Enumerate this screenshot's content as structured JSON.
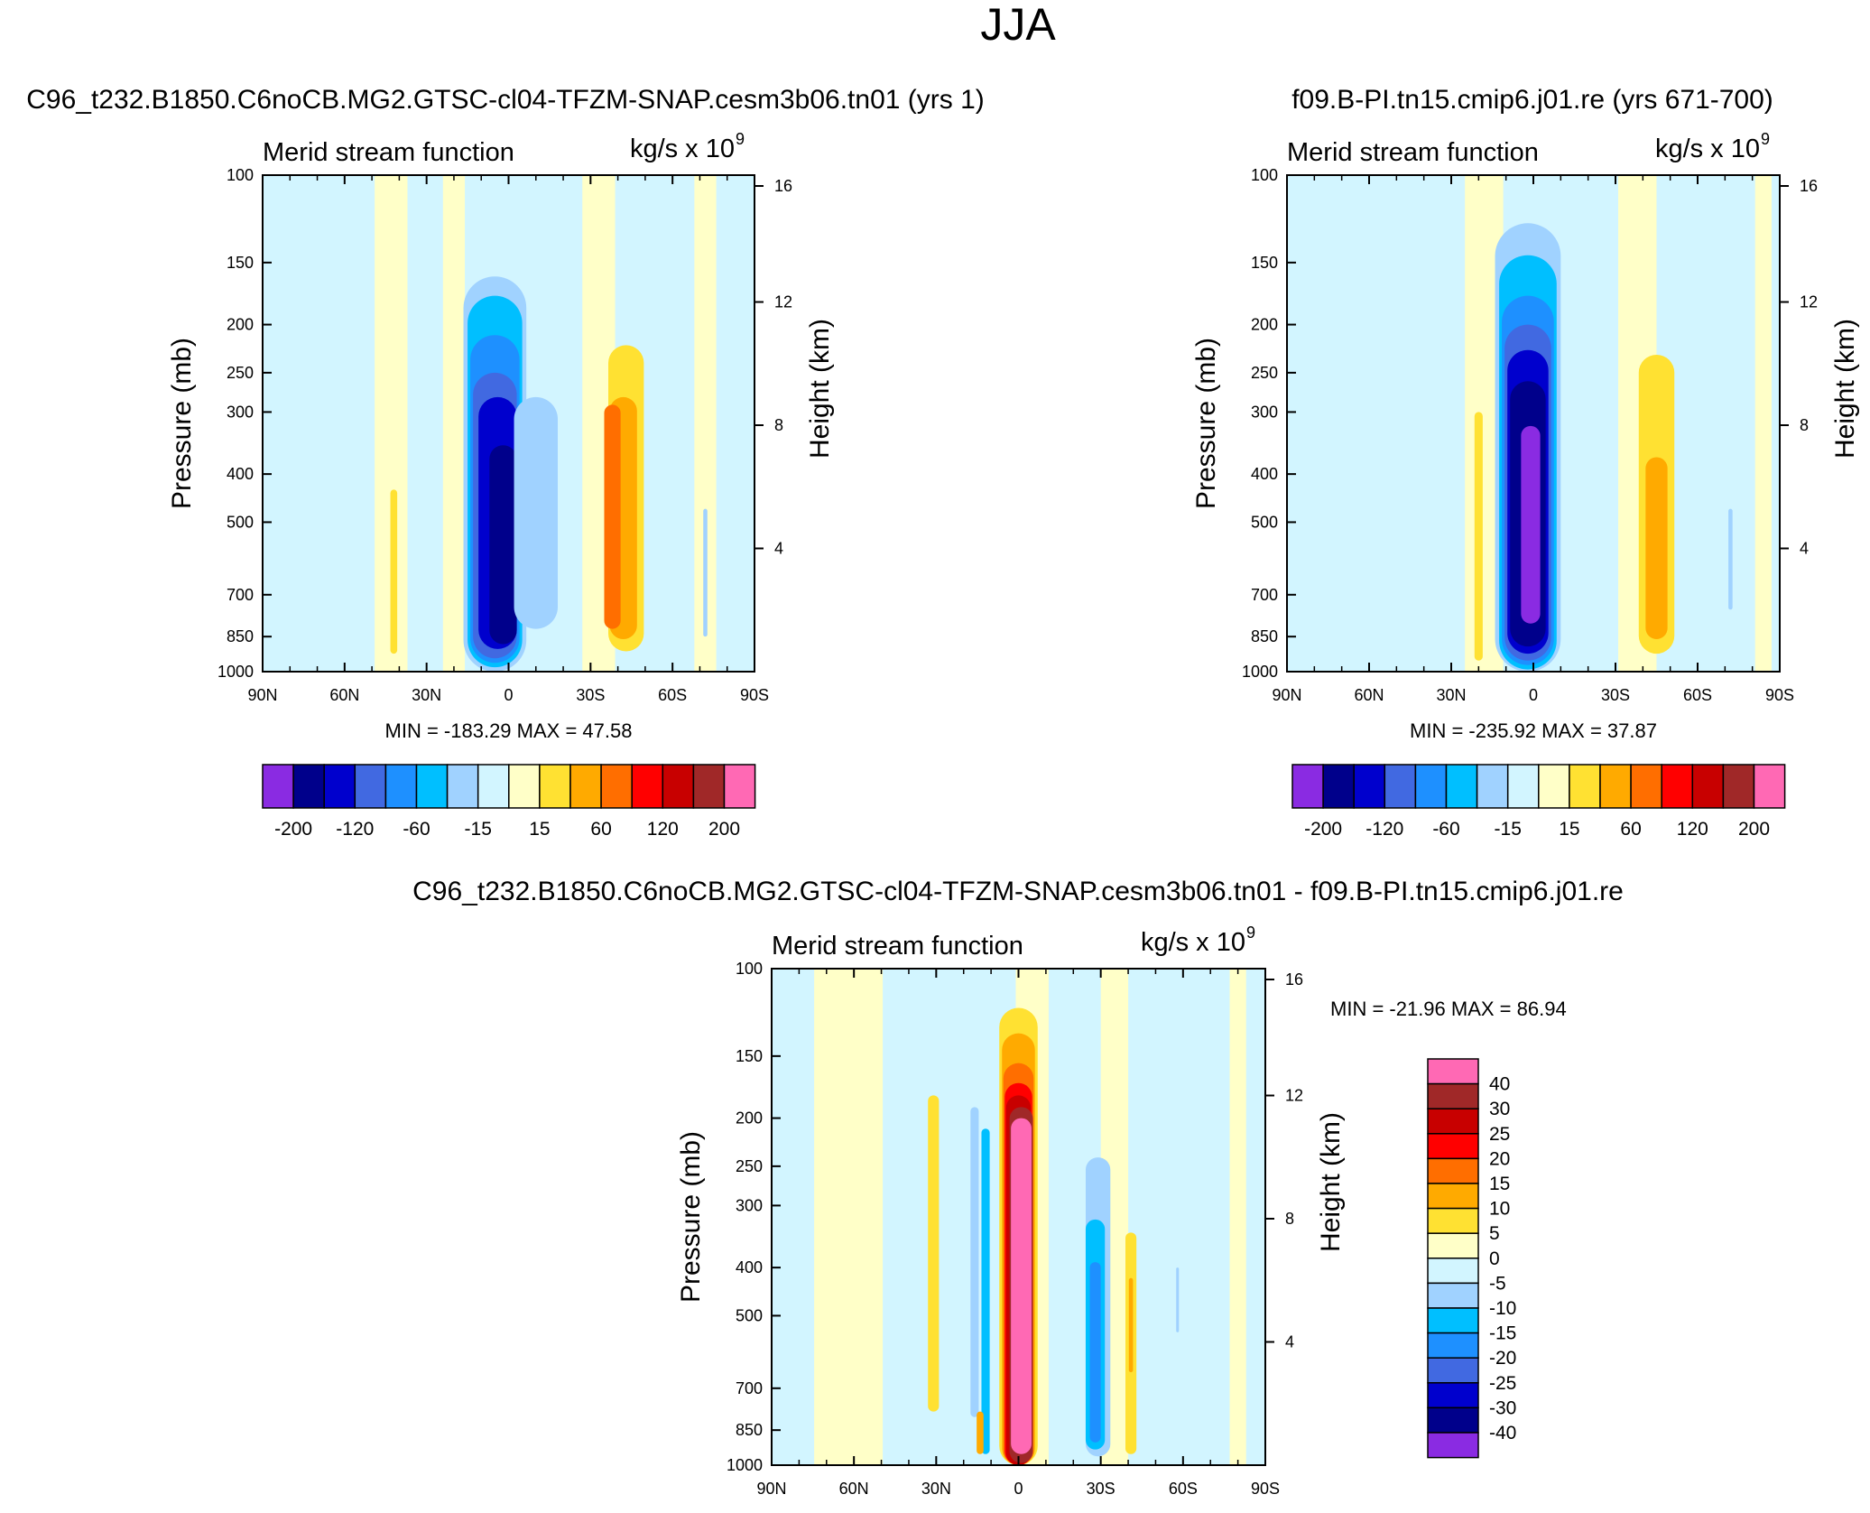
{
  "page_title": "JJA",
  "colors": {
    "neg": [
      "#8a2be2",
      "#00008b",
      "#0000cd",
      "#4169e1",
      "#1e90ff",
      "#00bfff",
      "#a0d2ff",
      "#d2f5ff"
    ],
    "pos": [
      "#ffffc8",
      "#ffe132",
      "#ffaa00",
      "#ff6e00",
      "#ff0000",
      "#c80000",
      "#a02828",
      "#ff69b4"
    ]
  },
  "chart_data": [
    {
      "type": "contour",
      "panel_title": "C96_t232.B1850.C6noCB.MG2.GTSC-cl04-TFZM-SNAP.cesm3b06.tn01 (yrs 1)",
      "subtitle_left": "Merid stream function",
      "units": "kg/s x 10",
      "units_exp": "9",
      "ylabel": "Pressure (mb)",
      "ylabel_right": "Height (km)",
      "x_ticks": [
        "90N",
        "60N",
        "30N",
        "0",
        "30S",
        "60S",
        "90S"
      ],
      "x_values": [
        90,
        60,
        30,
        0,
        -30,
        -60,
        -90
      ],
      "y_ticks": [
        "100",
        "150",
        "200",
        "250",
        "300",
        "400",
        "500",
        "700",
        "850",
        "1000"
      ],
      "y_values": [
        100,
        150,
        200,
        250,
        300,
        400,
        500,
        700,
        850,
        1000
      ],
      "height_ticks": [
        "16",
        "12",
        "8",
        "4"
      ],
      "height_values": [
        16,
        12,
        8,
        4
      ],
      "stats": "MIN = -183.29  MAX =  47.58",
      "legend_orientation": "horizontal",
      "levels": [
        -200,
        -160,
        -120,
        -80,
        -60,
        -40,
        -15,
        0,
        15,
        40,
        60,
        80,
        120,
        160,
        200
      ],
      "legend_labels": [
        "-200",
        "-120",
        "-60",
        "-15",
        "15",
        "60",
        "120",
        "200"
      ],
      "cells": [
        {
          "lat": 5,
          "p0": 1000,
          "p1": 160,
          "w": 23,
          "level": 6
        },
        {
          "lat": 5,
          "p0": 980,
          "p1": 175,
          "w": 20,
          "level": 5
        },
        {
          "lat": 5,
          "p0": 960,
          "p1": 210,
          "w": 18,
          "level": 4
        },
        {
          "lat": 5,
          "p0": 940,
          "p1": 250,
          "w": 16,
          "level": 3
        },
        {
          "lat": 4,
          "p0": 900,
          "p1": 280,
          "w": 14,
          "level": 2
        },
        {
          "lat": 2,
          "p0": 880,
          "p1": 350,
          "w": 10,
          "level": 1
        },
        {
          "lat": -43,
          "p0": 910,
          "p1": 220,
          "w": 13,
          "level": 9
        },
        {
          "lat": -42,
          "p0": 860,
          "p1": 280,
          "w": 10,
          "level": 10
        },
        {
          "lat": -38,
          "p0": 820,
          "p1": 290,
          "w": 6,
          "level": 11
        },
        {
          "lat": -10,
          "p0": 820,
          "p1": 280,
          "w": 16,
          "level": 6
        },
        {
          "lat": 42,
          "p0": 920,
          "p1": 430,
          "w": 2.5,
          "level": 9
        },
        {
          "lat": -72,
          "p0": 850,
          "p1": 470,
          "w": 1.5,
          "level": 6
        }
      ]
    },
    {
      "type": "contour",
      "panel_title": "f09.B-PI.tn15.cmip6.j01.re (yrs 671-700)",
      "subtitle_left": "Merid stream function",
      "units": "kg/s x 10",
      "units_exp": "9",
      "ylabel": "Pressure (mb)",
      "ylabel_right": "Height (km)",
      "x_ticks": [
        "90N",
        "60N",
        "30N",
        "0",
        "30S",
        "60S",
        "90S"
      ],
      "x_values": [
        90,
        60,
        30,
        0,
        -30,
        -60,
        -90
      ],
      "y_ticks": [
        "100",
        "150",
        "200",
        "250",
        "300",
        "400",
        "500",
        "700",
        "850",
        "1000"
      ],
      "y_values": [
        100,
        150,
        200,
        250,
        300,
        400,
        500,
        700,
        850,
        1000
      ],
      "height_ticks": [
        "16",
        "12",
        "8",
        "4"
      ],
      "height_values": [
        16,
        12,
        8,
        4
      ],
      "stats": "MIN = -235.92  MAX =  37.87",
      "legend_orientation": "horizontal",
      "levels": [
        -200,
        -160,
        -120,
        -80,
        -60,
        -40,
        -15,
        0,
        15,
        40,
        60,
        80,
        120,
        160,
        200
      ],
      "legend_labels": [
        "-200",
        "-120",
        "-60",
        "-15",
        "15",
        "60",
        "120",
        "200"
      ],
      "cells": [
        {
          "lat": 2,
          "p0": 1000,
          "p1": 125,
          "w": 24,
          "level": 6
        },
        {
          "lat": 2,
          "p0": 990,
          "p1": 145,
          "w": 21,
          "level": 5
        },
        {
          "lat": 2,
          "p0": 970,
          "p1": 175,
          "w": 19,
          "level": 4
        },
        {
          "lat": 2,
          "p0": 950,
          "p1": 200,
          "w": 17,
          "level": 3
        },
        {
          "lat": 2,
          "p0": 920,
          "p1": 225,
          "w": 15,
          "level": 2
        },
        {
          "lat": 2,
          "p0": 890,
          "p1": 260,
          "w": 13,
          "level": 1
        },
        {
          "lat": 1,
          "p0": 800,
          "p1": 320,
          "w": 7,
          "level": 0
        },
        {
          "lat": -45,
          "p0": 920,
          "p1": 230,
          "w": 13,
          "level": 9
        },
        {
          "lat": -45,
          "p0": 860,
          "p1": 370,
          "w": 8,
          "level": 10
        },
        {
          "lat": 20,
          "p0": 950,
          "p1": 300,
          "w": 3,
          "level": 9
        },
        {
          "lat": -72,
          "p0": 750,
          "p1": 470,
          "w": 1.5,
          "level": 6
        }
      ]
    },
    {
      "type": "contour",
      "panel_title": "C96_t232.B1850.C6noCB.MG2.GTSC-cl04-TFZM-SNAP.cesm3b06.tn01 - f09.B-PI.tn15.cmip6.j01.re",
      "subtitle_left": "Merid stream function",
      "units": "kg/s x 10",
      "units_exp": "9",
      "ylabel": "Pressure (mb)",
      "ylabel_right": "Height (km)",
      "x_ticks": [
        "90N",
        "60N",
        "30N",
        "0",
        "30S",
        "60S",
        "90S"
      ],
      "x_values": [
        90,
        60,
        30,
        0,
        -30,
        -60,
        -90
      ],
      "y_ticks": [
        "100",
        "150",
        "200",
        "250",
        "300",
        "400",
        "500",
        "700",
        "850",
        "1000"
      ],
      "y_values": [
        100,
        150,
        200,
        250,
        300,
        400,
        500,
        700,
        850,
        1000
      ],
      "height_ticks": [
        "16",
        "12",
        "8",
        "4"
      ],
      "height_values": [
        16,
        12,
        8,
        4
      ],
      "stats": "MIN = -21.96  MAX =  86.94",
      "legend_orientation": "vertical",
      "levels": [
        -40,
        -30,
        -25,
        -20,
        -15,
        -10,
        -5,
        0,
        5,
        10,
        15,
        20,
        25,
        30,
        40
      ],
      "legend_labels": [
        "40",
        "30",
        "25",
        "20",
        "15",
        "10",
        "5",
        "0",
        "-5",
        "-10",
        "-15",
        "-20",
        "-25",
        "-30",
        "-40"
      ],
      "cells": [
        {
          "lat": 0,
          "p0": 1000,
          "p1": 120,
          "w": 14,
          "level": 9
        },
        {
          "lat": 0,
          "p0": 1000,
          "p1": 135,
          "w": 12,
          "level": 10
        },
        {
          "lat": 0,
          "p0": 1000,
          "p1": 155,
          "w": 11,
          "level": 11
        },
        {
          "lat": 0,
          "p0": 1000,
          "p1": 170,
          "w": 10,
          "level": 12
        },
        {
          "lat": 0,
          "p0": 1000,
          "p1": 180,
          "w": 9,
          "level": 13
        },
        {
          "lat": -1,
          "p0": 990,
          "p1": 190,
          "w": 8.5,
          "level": 14
        },
        {
          "lat": -1,
          "p0": 950,
          "p1": 200,
          "w": 7.5,
          "level": 15
        },
        {
          "lat": -29,
          "p0": 960,
          "p1": 240,
          "w": 9,
          "level": 6
        },
        {
          "lat": -28,
          "p0": 930,
          "p1": 320,
          "w": 7,
          "level": 5
        },
        {
          "lat": -28,
          "p0": 900,
          "p1": 390,
          "w": 4,
          "level": 4
        },
        {
          "lat": 12,
          "p0": 950,
          "p1": 210,
          "w": 3,
          "level": 5
        },
        {
          "lat": 16,
          "p0": 800,
          "p1": 190,
          "w": 3,
          "level": 6
        },
        {
          "lat": 31,
          "p0": 780,
          "p1": 180,
          "w": 4,
          "level": 9
        },
        {
          "lat": -41,
          "p0": 950,
          "p1": 340,
          "w": 4,
          "level": 9
        },
        {
          "lat": -41,
          "p0": 650,
          "p1": 420,
          "w": 1.5,
          "level": 10
        },
        {
          "lat": -58,
          "p0": 540,
          "p1": 400,
          "w": 1,
          "level": 6
        },
        {
          "lat": 14,
          "p0": 950,
          "p1": 780,
          "w": 2.5,
          "level": 10
        }
      ]
    }
  ]
}
